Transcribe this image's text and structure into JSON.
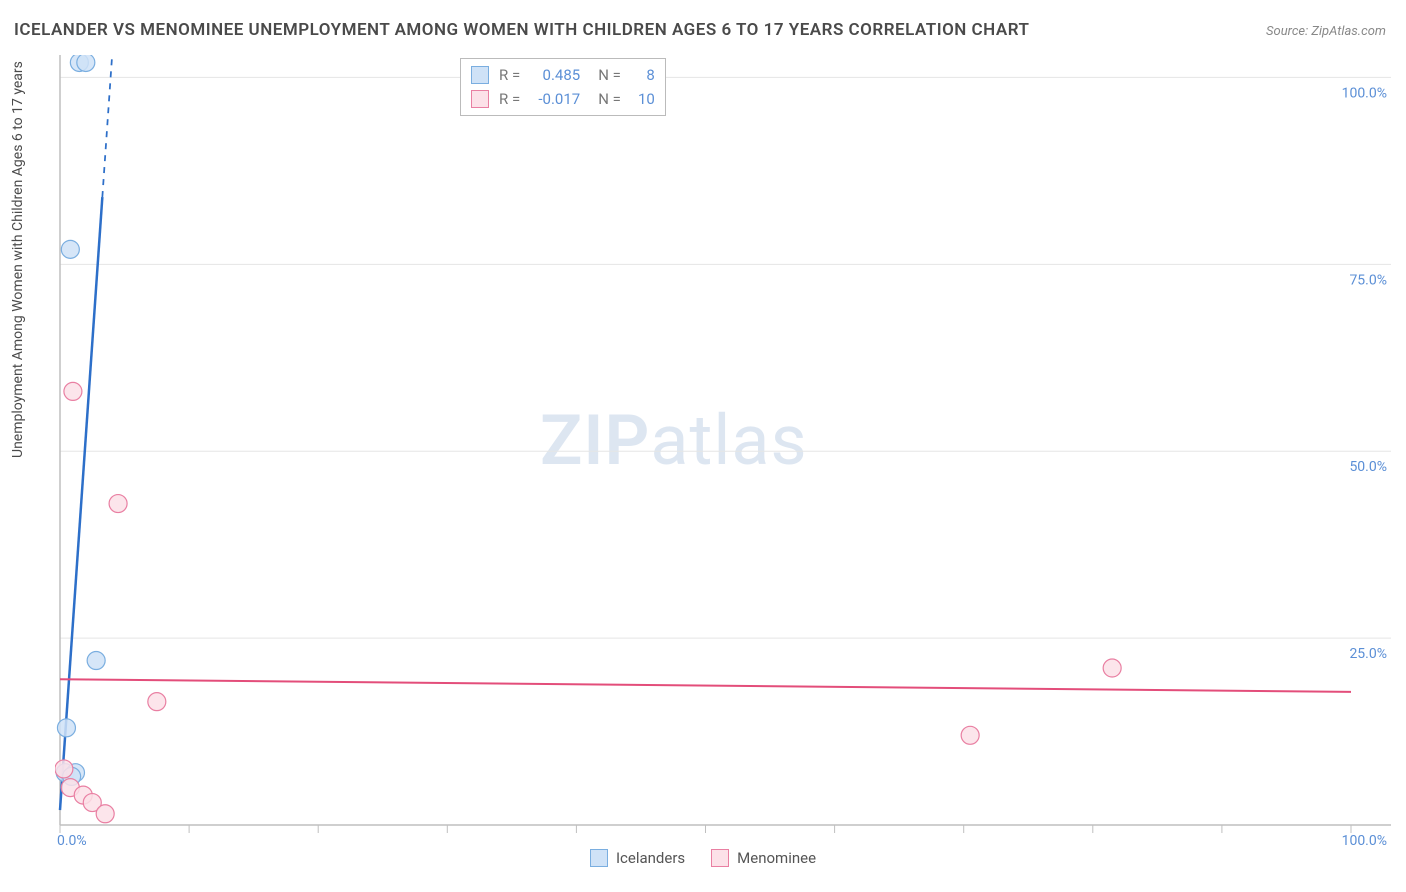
{
  "title": "ICELANDER VS MENOMINEE UNEMPLOYMENT AMONG WOMEN WITH CHILDREN AGES 6 TO 17 YEARS CORRELATION CHART",
  "source": "Source: ZipAtlas.com",
  "y_axis_label": "Unemployment Among Women with Children Ages 6 to 17 years",
  "watermark": {
    "bold": "ZIP",
    "rest": "atlas"
  },
  "chart": {
    "type": "scatter",
    "xlim": [
      0,
      100
    ],
    "ylim": [
      0,
      103
    ],
    "x_ticks": [
      0,
      10,
      20,
      30,
      40,
      50,
      60,
      70,
      80,
      90,
      100
    ],
    "y_gridlines": [
      25,
      50,
      75,
      100
    ],
    "x_tick_labels": {
      "0": "0.0%",
      "100": "100.0%"
    },
    "y_tick_labels": {
      "25": "25.0%",
      "50": "50.0%",
      "75": "75.0%",
      "100": "100.0%"
    },
    "background_color": "#ffffff",
    "grid_color": "#e5e5e5",
    "axis_color": "#bfbfbf",
    "tick_label_color": "#5b8fd6",
    "series": [
      {
        "name": "Icelanders",
        "color_fill": "#cfe2f7",
        "color_stroke": "#7aaee0",
        "marker_radius": 9,
        "regression": {
          "slope": 25.0,
          "intercept": 2.0,
          "color": "#2d6fc9",
          "width": 2.5,
          "dash_after_y": 84
        },
        "stats": {
          "R": "0.485",
          "N": "8"
        },
        "points": [
          {
            "x": 1.5,
            "y": 102
          },
          {
            "x": 2.0,
            "y": 102
          },
          {
            "x": 0.8,
            "y": 77
          },
          {
            "x": 2.8,
            "y": 22
          },
          {
            "x": 0.5,
            "y": 13
          },
          {
            "x": 0.4,
            "y": 7
          },
          {
            "x": 1.2,
            "y": 7
          },
          {
            "x": 0.9,
            "y": 6.5
          }
        ]
      },
      {
        "name": "Menominee",
        "color_fill": "#fce1e8",
        "color_stroke": "#e97fa2",
        "marker_radius": 9,
        "regression": {
          "slope": -0.017,
          "intercept": 19.5,
          "color": "#e34d7a",
          "width": 2,
          "dash_after_y": 200
        },
        "stats": {
          "R": "-0.017",
          "N": "10"
        },
        "points": [
          {
            "x": 1.0,
            "y": 58
          },
          {
            "x": 4.5,
            "y": 43
          },
          {
            "x": 81.5,
            "y": 21
          },
          {
            "x": 7.5,
            "y": 16.5
          },
          {
            "x": 70.5,
            "y": 12
          },
          {
            "x": 0.3,
            "y": 7.5
          },
          {
            "x": 0.8,
            "y": 5
          },
          {
            "x": 1.8,
            "y": 4
          },
          {
            "x": 2.5,
            "y": 3
          },
          {
            "x": 3.5,
            "y": 1.5
          }
        ]
      }
    ]
  },
  "legend_top": [
    {
      "series_index": 0,
      "r_label": "R =",
      "n_label": "N ="
    },
    {
      "series_index": 1,
      "r_label": "R =",
      "n_label": "N ="
    }
  ],
  "legend_bottom": [
    {
      "series_index": 0
    },
    {
      "series_index": 1
    }
  ]
}
